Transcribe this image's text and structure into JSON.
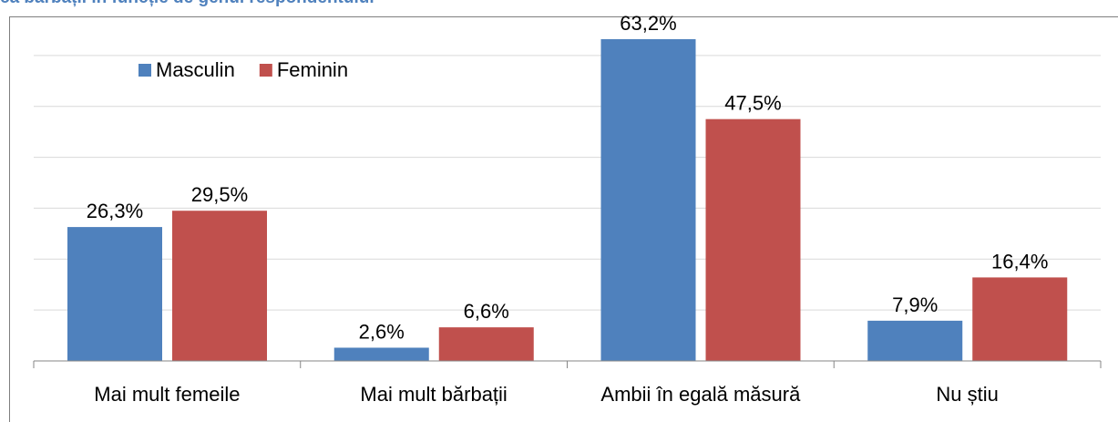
{
  "chart_data": {
    "type": "bar",
    "title": "ca bărbații în funcție de genul respondentului",
    "categories": [
      "Mai mult femeile",
      "Mai mult bărbații",
      "Ambii în egală măsură",
      "Nu știu"
    ],
    "series": [
      {
        "name": "Masculin",
        "color": "#4f81bd",
        "values": [
          26.3,
          2.6,
          63.2,
          7.9
        ],
        "value_labels": [
          "26,3%",
          "2,6%",
          "63,2%",
          "7,9%"
        ]
      },
      {
        "name": "Feminin",
        "color": "#c0504d",
        "values": [
          29.5,
          6.6,
          47.5,
          16.4
        ],
        "value_labels": [
          "29,5%",
          "6,6%",
          "47,5%",
          "16,4%"
        ]
      }
    ],
    "ylim": [
      0,
      70
    ],
    "yticks": [
      0,
      10,
      20,
      30,
      40,
      50,
      60
    ],
    "grid": true,
    "legend": "top-left"
  }
}
